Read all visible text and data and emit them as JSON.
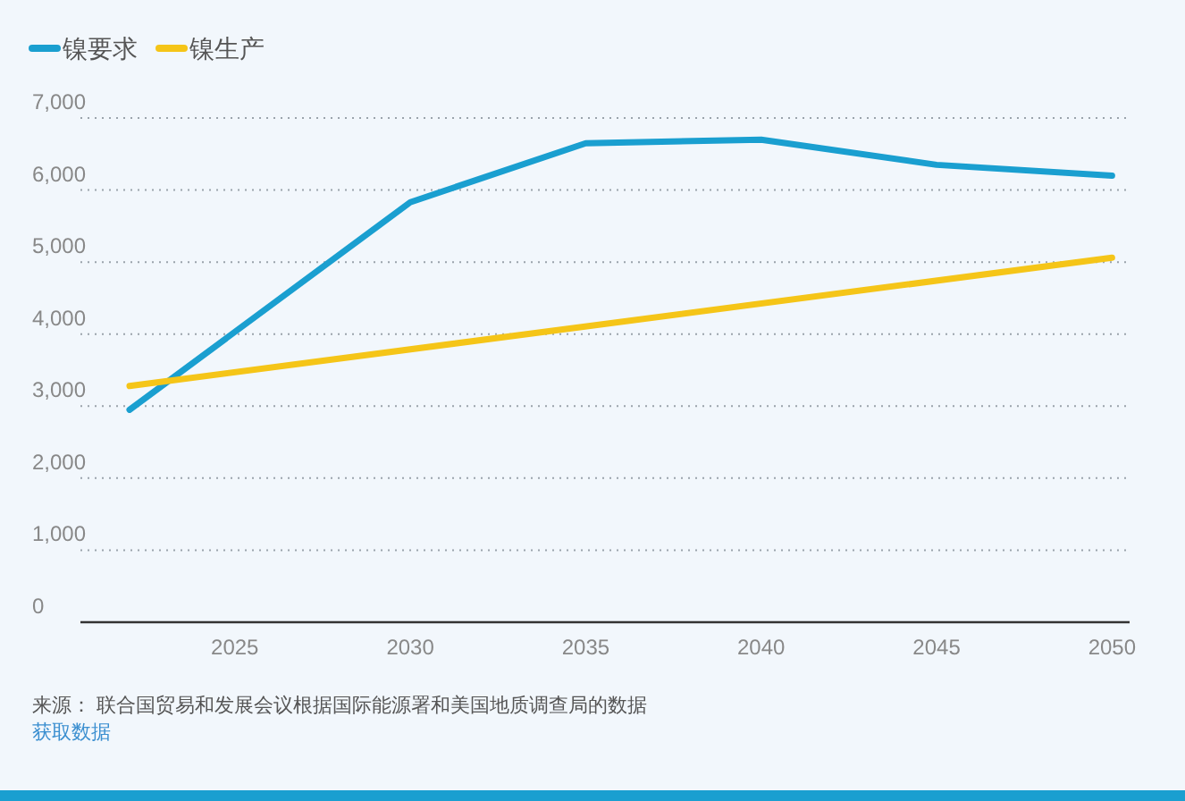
{
  "chart_data": {
    "type": "line",
    "x": [
      2022,
      2030,
      2035,
      2040,
      2045,
      2050
    ],
    "series": [
      {
        "name": "镍要求",
        "color": "#1a9fd0",
        "values": [
          2950,
          5830,
          6650,
          6700,
          6350,
          6200
        ]
      },
      {
        "name": "镍生产",
        "color": "#f5c518",
        "x": [
          2022,
          2050
        ],
        "values": [
          3280,
          5060
        ]
      }
    ],
    "xlim": [
      2020.6,
      2050.5
    ],
    "xticks": [
      2025,
      2030,
      2035,
      2040,
      2045,
      2050
    ],
    "ylim": [
      0,
      7000
    ],
    "yticks": [
      {
        "value": 0,
        "label": "0"
      },
      {
        "value": 1000,
        "label": "1,000"
      },
      {
        "value": 2000,
        "label": "2,000"
      },
      {
        "value": 3000,
        "label": "3,000"
      },
      {
        "value": 4000,
        "label": "4,000"
      },
      {
        "value": 5000,
        "label": "5,000"
      },
      {
        "value": 6000,
        "label": "6,000"
      },
      {
        "value": 7000,
        "label": "7,000"
      }
    ],
    "grid": "y",
    "legend": "top left",
    "marker": "none",
    "line_style": "solid",
    "annotations": [
      "来源： 联合国贸易和发展会议根据国际能源署和美国地质调查局的数据",
      "获取数据"
    ]
  }
}
